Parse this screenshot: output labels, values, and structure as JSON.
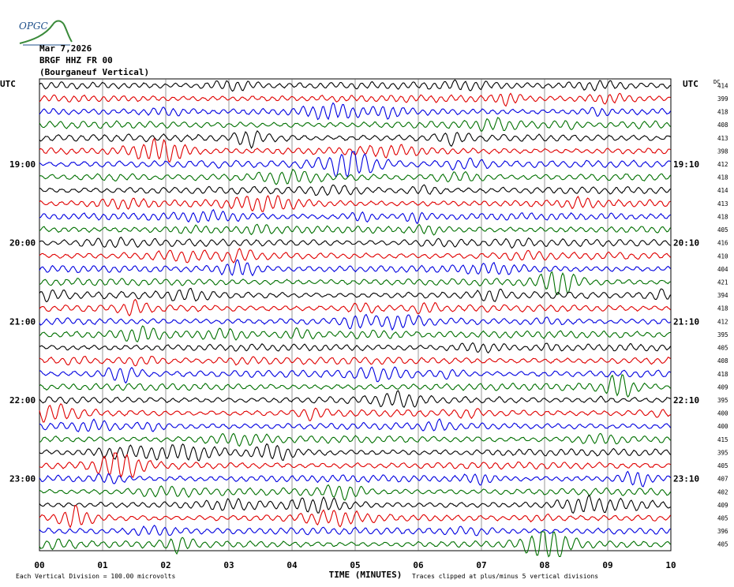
{
  "logo": {
    "text": "OPGC"
  },
  "header": {
    "date": "Mar 7,2026",
    "station": "BRGF HHZ FR 00",
    "location": "(Bourganeuf Vertical)"
  },
  "chart_data": {
    "type": "line",
    "title": "Mar 7,2026 BRGF HHZ FR 00 (Bourganeuf Vertical)",
    "xlabel": "TIME (MINUTES)",
    "xlim": [
      0,
      10
    ],
    "x_ticks": [
      "00",
      "01",
      "02",
      "03",
      "04",
      "05",
      "06",
      "07",
      "08",
      "09",
      "10"
    ],
    "left_axis_label": "UTC",
    "right_axis_label": "UTC",
    "dc_label": "DC",
    "left_time_labels": [
      "19:00",
      "20:00",
      "21:00",
      "22:00",
      "23:00"
    ],
    "right_time_labels": [
      "19:10",
      "20:10",
      "21:10",
      "22:10",
      "23:10"
    ],
    "trace_colors": [
      "#000000",
      "#e00000",
      "#0000e0",
      "#007000"
    ],
    "trace_minutes_per_line": 10,
    "trace_count": 36,
    "dc_offsets": [
      414,
      399,
      418,
      408,
      413,
      398,
      412,
      418,
      414,
      413,
      418,
      405,
      416,
      410,
      404,
      421,
      394,
      418,
      412,
      395,
      405,
      408,
      418,
      409,
      395,
      400,
      400,
      415,
      395,
      405,
      407,
      402,
      409,
      405,
      396,
      405
    ],
    "footer_left": "Each Vertical Division =  100.00 microvolts",
    "footer_right": "Traces clipped at plus/minus 5 vertical divisions"
  }
}
